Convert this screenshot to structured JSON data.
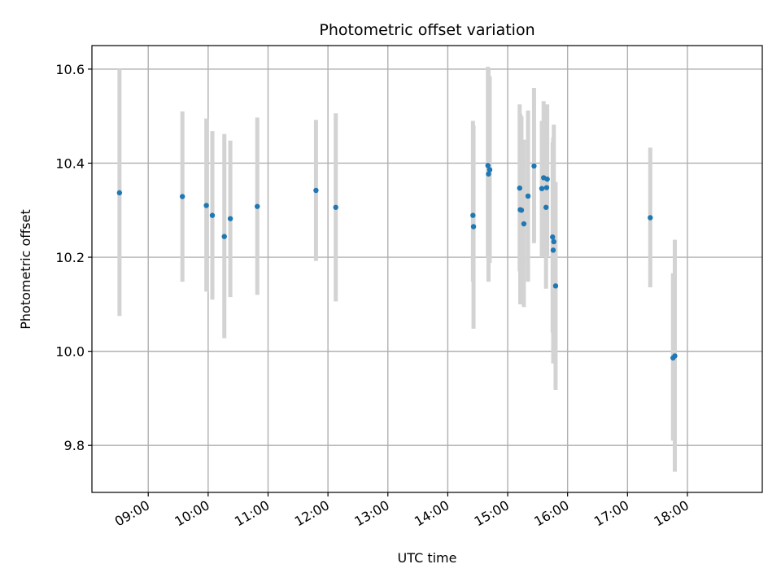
{
  "chart_data": {
    "type": "scatter",
    "title": "Photometric offset variation",
    "xlabel": "UTC time",
    "ylabel": "Photometric offset",
    "x_unit": "UTC time (hours)",
    "xlim": [
      8.06,
      19.25
    ],
    "ylim": [
      9.7,
      10.65
    ],
    "grid": true,
    "x_ticks": [
      {
        "value": 9,
        "label": "09:00"
      },
      {
        "value": 10,
        "label": "10:00"
      },
      {
        "value": 11,
        "label": "11:00"
      },
      {
        "value": 12,
        "label": "12:00"
      },
      {
        "value": 13,
        "label": "13:00"
      },
      {
        "value": 14,
        "label": "14:00"
      },
      {
        "value": 15,
        "label": "15:00"
      },
      {
        "value": 16,
        "label": "16:00"
      },
      {
        "value": 17,
        "label": "17:00"
      },
      {
        "value": 18,
        "label": "18:00"
      }
    ],
    "y_ticks": [
      {
        "value": 9.8,
        "label": "9.8"
      },
      {
        "value": 10.0,
        "label": "10.0"
      },
      {
        "value": 10.2,
        "label": "10.2"
      },
      {
        "value": 10.4,
        "label": "10.4"
      },
      {
        "value": 10.6,
        "label": "10.6"
      }
    ],
    "colors": {
      "points": "#1f77b4",
      "errorbars": "#d3d3d3"
    },
    "points": [
      {
        "x": 8.52,
        "y": 10.337,
        "ylow": 10.075,
        "yhigh": 10.6
      },
      {
        "x": 9.57,
        "y": 10.329,
        "ylow": 10.148,
        "yhigh": 10.51
      },
      {
        "x": 9.97,
        "y": 10.31,
        "ylow": 10.127,
        "yhigh": 10.495
      },
      {
        "x": 10.07,
        "y": 10.289,
        "ylow": 10.11,
        "yhigh": 10.468
      },
      {
        "x": 10.27,
        "y": 10.244,
        "ylow": 10.028,
        "yhigh": 10.462
      },
      {
        "x": 10.37,
        "y": 10.282,
        "ylow": 10.115,
        "yhigh": 10.448
      },
      {
        "x": 10.82,
        "y": 10.308,
        "ylow": 10.12,
        "yhigh": 10.497
      },
      {
        "x": 11.8,
        "y": 10.342,
        "ylow": 10.192,
        "yhigh": 10.492
      },
      {
        "x": 12.13,
        "y": 10.306,
        "ylow": 10.106,
        "yhigh": 10.506
      },
      {
        "x": 14.42,
        "y": 10.289,
        "ylow": 10.148,
        "yhigh": 10.49
      },
      {
        "x": 14.43,
        "y": 10.265,
        "ylow": 10.048,
        "yhigh": 10.48
      },
      {
        "x": 14.67,
        "y": 10.395,
        "ylow": 10.2,
        "yhigh": 10.605
      },
      {
        "x": 14.68,
        "y": 10.377,
        "ylow": 10.148,
        "yhigh": 10.6
      },
      {
        "x": 14.7,
        "y": 10.386,
        "ylow": 10.188,
        "yhigh": 10.585
      },
      {
        "x": 15.2,
        "y": 10.347,
        "ylow": 10.17,
        "yhigh": 10.525
      },
      {
        "x": 15.21,
        "y": 10.301,
        "ylow": 10.1,
        "yhigh": 10.505
      },
      {
        "x": 15.23,
        "y": 10.3,
        "ylow": 10.1,
        "yhigh": 10.5
      },
      {
        "x": 15.27,
        "y": 10.271,
        "ylow": 10.094,
        "yhigh": 10.45
      },
      {
        "x": 15.34,
        "y": 10.33,
        "ylow": 10.148,
        "yhigh": 10.512
      },
      {
        "x": 15.44,
        "y": 10.394,
        "ylow": 10.23,
        "yhigh": 10.56
      },
      {
        "x": 15.57,
        "y": 10.346,
        "ylow": 10.2,
        "yhigh": 10.49
      },
      {
        "x": 15.6,
        "y": 10.369,
        "ylow": 10.2,
        "yhigh": 10.532
      },
      {
        "x": 15.64,
        "y": 10.306,
        "ylow": 10.133,
        "yhigh": 10.48
      },
      {
        "x": 15.65,
        "y": 10.348,
        "ylow": 10.2,
        "yhigh": 10.5
      },
      {
        "x": 15.66,
        "y": 10.366,
        "ylow": 10.2,
        "yhigh": 10.525
      },
      {
        "x": 15.75,
        "y": 10.243,
        "ylow": 10.04,
        "yhigh": 10.445
      },
      {
        "x": 15.76,
        "y": 10.215,
        "ylow": 9.974,
        "yhigh": 10.455
      },
      {
        "x": 15.77,
        "y": 10.233,
        "ylow": 9.985,
        "yhigh": 10.482
      },
      {
        "x": 15.8,
        "y": 10.139,
        "ylow": 9.918,
        "yhigh": 10.36
      },
      {
        "x": 17.38,
        "y": 10.284,
        "ylow": 10.136,
        "yhigh": 10.433
      },
      {
        "x": 17.76,
        "y": 9.986,
        "ylow": 9.81,
        "yhigh": 10.166
      },
      {
        "x": 17.79,
        "y": 9.99,
        "ylow": 9.744,
        "yhigh": 10.237
      }
    ]
  }
}
